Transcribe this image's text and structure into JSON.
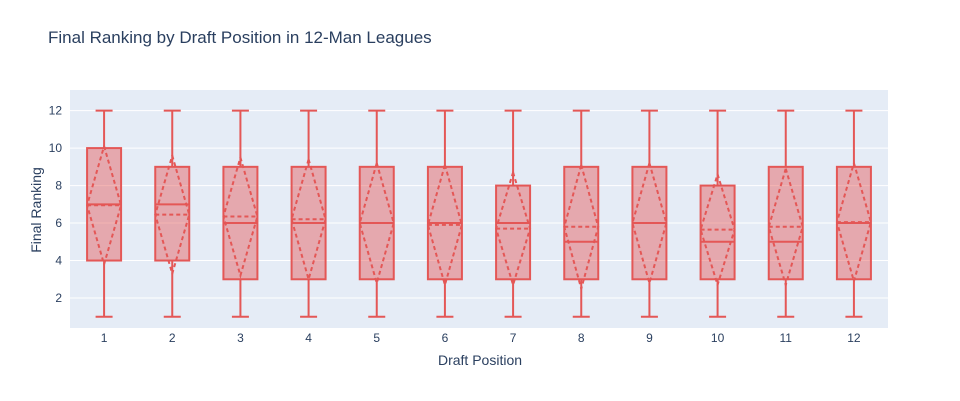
{
  "chart_data": {
    "type": "box",
    "title": "Final Ranking by Draft Position in 12-Man Leagues",
    "xlabel": "Draft Position",
    "ylabel": "Final Ranking",
    "ylim": [
      0.4,
      13.1
    ],
    "yticks": [
      2,
      4,
      6,
      8,
      10,
      12
    ],
    "grid": true,
    "color": "#e45756",
    "categories": [
      "1",
      "2",
      "3",
      "4",
      "5",
      "6",
      "7",
      "8",
      "9",
      "10",
      "11",
      "12"
    ],
    "boxes": [
      {
        "min": 1,
        "q1": 4,
        "median": 7,
        "q3": 10,
        "max": 12,
        "mean": 6.95,
        "sd_low": 3.8,
        "sd_high": 10.1
      },
      {
        "min": 1,
        "q1": 4,
        "median": 7,
        "q3": 9,
        "max": 12,
        "mean": 6.45,
        "sd_low": 3.3,
        "sd_high": 9.6
      },
      {
        "min": 1,
        "q1": 3,
        "median": 6,
        "q3": 9,
        "max": 12,
        "mean": 6.35,
        "sd_low": 3.2,
        "sd_high": 9.5
      },
      {
        "min": 1,
        "q1": 3,
        "median": 6,
        "q3": 9,
        "max": 12,
        "mean": 6.2,
        "sd_low": 3.0,
        "sd_high": 9.4
      },
      {
        "min": 1,
        "q1": 3,
        "median": 6,
        "q3": 9,
        "max": 12,
        "mean": 6.0,
        "sd_low": 2.8,
        "sd_high": 9.2
      },
      {
        "min": 1,
        "q1": 3,
        "median": 6,
        "q3": 9,
        "max": 12,
        "mean": 5.9,
        "sd_low": 2.7,
        "sd_high": 9.1
      },
      {
        "min": 1,
        "q1": 3,
        "median": 6,
        "q3": 8,
        "max": 12,
        "mean": 5.7,
        "sd_low": 2.7,
        "sd_high": 8.7
      },
      {
        "min": 1,
        "q1": 3,
        "median": 5,
        "q3": 9,
        "max": 12,
        "mean": 5.8,
        "sd_low": 2.5,
        "sd_high": 9.1
      },
      {
        "min": 1,
        "q1": 3,
        "median": 6,
        "q3": 9,
        "max": 12,
        "mean": 6.0,
        "sd_low": 2.8,
        "sd_high": 9.2
      },
      {
        "min": 1,
        "q1": 3,
        "median": 5,
        "q3": 8,
        "max": 12,
        "mean": 5.65,
        "sd_low": 2.7,
        "sd_high": 8.6
      },
      {
        "min": 1,
        "q1": 3,
        "median": 5,
        "q3": 9,
        "max": 12,
        "mean": 5.8,
        "sd_low": 2.7,
        "sd_high": 8.9
      },
      {
        "min": 1,
        "q1": 3,
        "median": 6,
        "q3": 9,
        "max": 12,
        "mean": 6.05,
        "sd_low": 2.9,
        "sd_high": 9.2
      }
    ]
  }
}
